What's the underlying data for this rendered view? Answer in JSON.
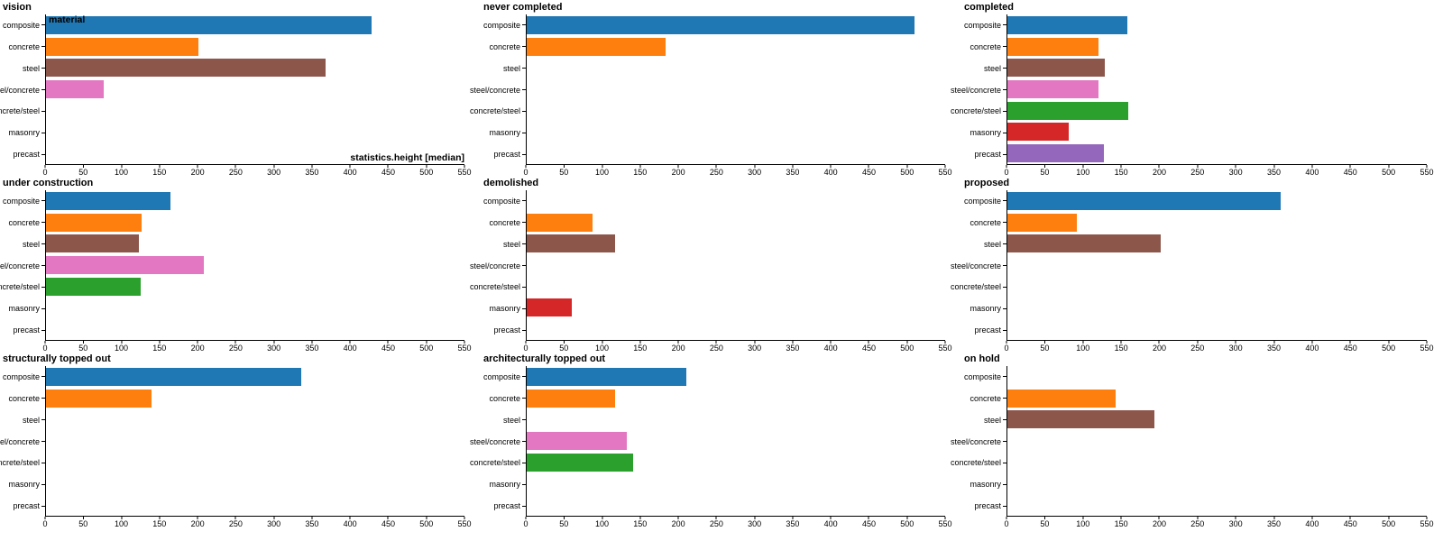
{
  "figure": {
    "background": "#ffffff",
    "axis_color": "#000000",
    "text_color": "#000000"
  },
  "chart_data": {
    "type": "bar",
    "orientation": "horizontal",
    "title": "",
    "xlabel": "statistics.height [median]",
    "ylabel": "",
    "legend_title": "material",
    "xlim": [
      0,
      550
    ],
    "xticks": [
      0,
      50,
      100,
      150,
      200,
      250,
      300,
      350,
      400,
      450,
      500,
      550
    ],
    "grid": false,
    "categories": [
      "composite",
      "concrete",
      "steel",
      "steel/concrete",
      "concrete/steel",
      "masonry",
      "precast"
    ],
    "bar_colors": [
      "#1f77b4",
      "#ff7f0e",
      "#8c564b",
      "#e377c2",
      "#2ca02c",
      "#d62728",
      "#9467bd"
    ],
    "facet_layout": "3x3 grid, one subplot per status",
    "facets": [
      {
        "title": "vision",
        "values": [
          428,
          200,
          368,
          76,
          0,
          0,
          0
        ]
      },
      {
        "title": "never completed",
        "values": [
          510,
          183,
          0,
          0,
          0,
          0,
          0
        ]
      },
      {
        "title": "completed",
        "values": [
          157,
          120,
          128,
          120,
          159,
          81,
          126
        ]
      },
      {
        "title": "under construction",
        "values": [
          164,
          126,
          122,
          208,
          124,
          0,
          0
        ]
      },
      {
        "title": "demolished",
        "values": [
          0,
          87,
          116,
          0,
          0,
          59,
          0
        ]
      },
      {
        "title": "proposed",
        "values": [
          358,
          91,
          201,
          0,
          0,
          0,
          0
        ]
      },
      {
        "title": "structurally topped out",
        "values": [
          335,
          139,
          0,
          0,
          0,
          0,
          0
        ]
      },
      {
        "title": "architecturally topped out",
        "values": [
          210,
          116,
          0,
          131,
          140,
          0,
          0
        ]
      },
      {
        "title": "on hold",
        "values": [
          0,
          142,
          193,
          0,
          0,
          0,
          0
        ]
      }
    ]
  }
}
